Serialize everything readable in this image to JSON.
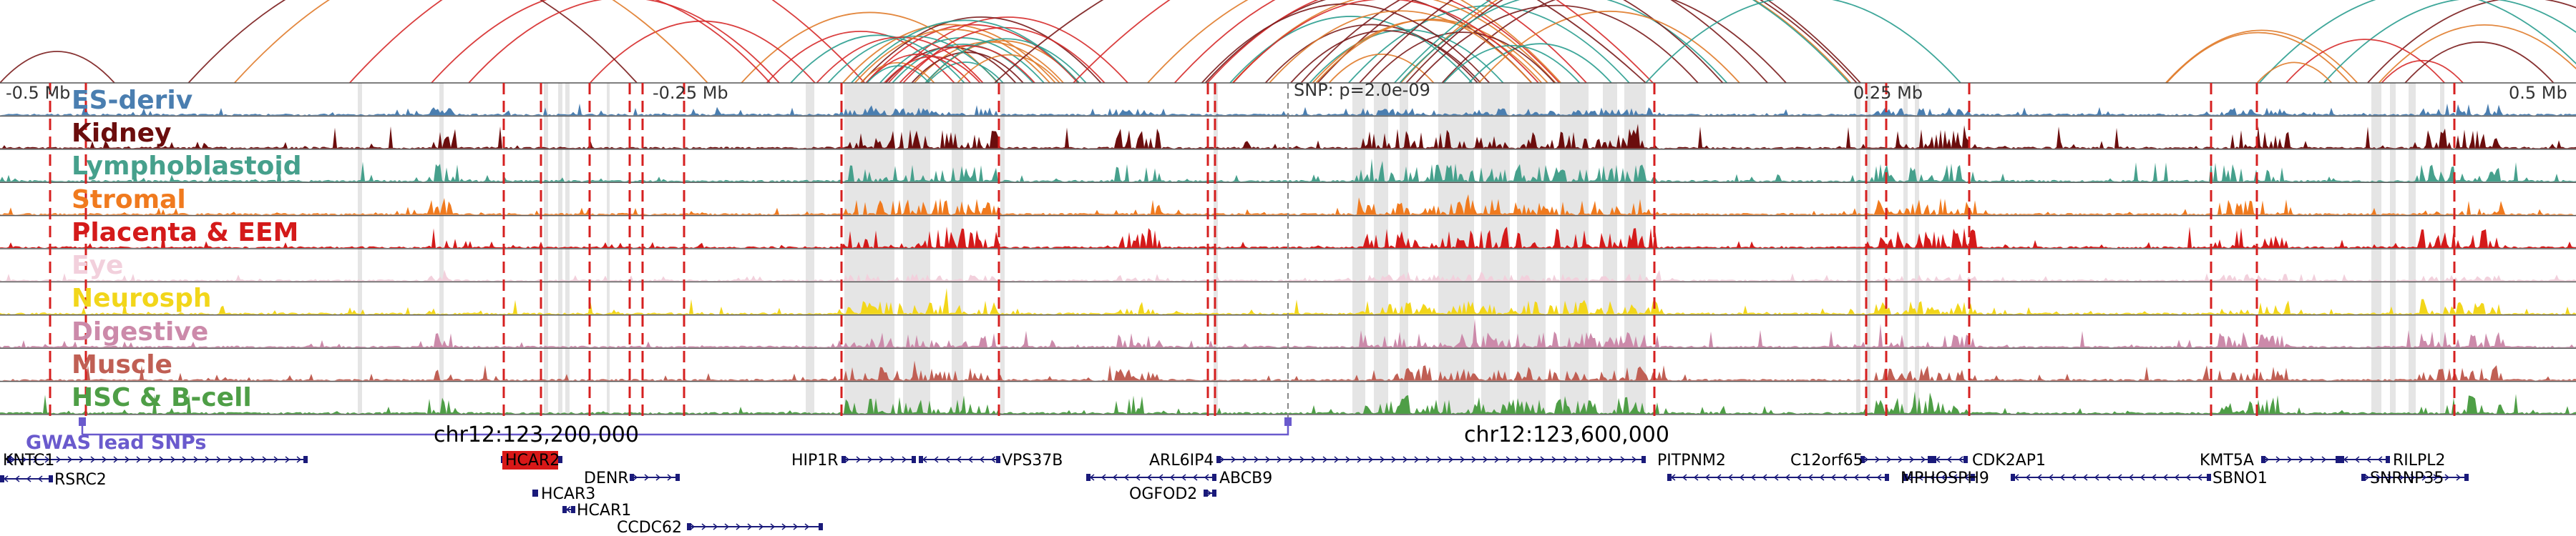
{
  "axis": {
    "ticks": [
      "-0.5 Mb",
      "-0.25 Mb",
      "SNP: p=2.0e-09",
      "0.25 Mb",
      "0.5 Mb"
    ],
    "coordinates": [
      "chr12:123,200,000",
      "chr12:123,600,000"
    ]
  },
  "tracks": [
    {
      "name": "ES-deriv",
      "color": "#4a7eb0",
      "level": 0.3
    },
    {
      "name": "Kidney",
      "color": "#6b0d0d",
      "level": 0.9
    },
    {
      "name": "Lymphoblastoid",
      "color": "#46a08c",
      "level": 0.8
    },
    {
      "name": "Stromal",
      "color": "#f07a1e",
      "level": 0.7
    },
    {
      "name": "Placenta & EEM",
      "color": "#d41a1a",
      "level": 0.9
    },
    {
      "name": "Eye",
      "color": "#f2d0dc",
      "level": 0.3
    },
    {
      "name": "Neurosph",
      "color": "#f2d61a",
      "level": 0.6
    },
    {
      "name": "Digestive",
      "color": "#cc8aaa",
      "level": 0.7
    },
    {
      "name": "Muscle",
      "color": "#c05f54",
      "level": 0.6
    },
    {
      "name": "HSC & B-cell",
      "color": "#4e9e46",
      "level": 0.8
    }
  ],
  "gwas": {
    "label": "GWAS lead SNPs",
    "color": "#6a5acd"
  },
  "genes": [
    {
      "name": "KNTC1",
      "strand": "+",
      "highlight": false
    },
    {
      "name": "RSRC2",
      "strand": "-",
      "highlight": false
    },
    {
      "name": "HCAR2",
      "strand": "-",
      "highlight": true
    },
    {
      "name": "HCAR3",
      "strand": "-",
      "highlight": false
    },
    {
      "name": "HCAR1",
      "strand": "-",
      "highlight": false
    },
    {
      "name": "DENR",
      "strand": "+",
      "highlight": false
    },
    {
      "name": "CCDC62",
      "strand": "+",
      "highlight": false
    },
    {
      "name": "HIP1R",
      "strand": "+",
      "highlight": false
    },
    {
      "name": "VPS37B",
      "strand": "-",
      "highlight": false
    },
    {
      "name": "ARL6IP4",
      "strand": "+",
      "highlight": false
    },
    {
      "name": "ABCB9",
      "strand": "-",
      "highlight": false
    },
    {
      "name": "OGFOD2",
      "strand": "+",
      "highlight": false
    },
    {
      "name": "PITPNM2",
      "strand": "-",
      "highlight": false
    },
    {
      "name": "C12orf65",
      "strand": "+",
      "highlight": false
    },
    {
      "name": "CDK2AP1",
      "strand": "-",
      "highlight": false
    },
    {
      "name": "MPHOSPH9",
      "strand": "-",
      "highlight": false
    },
    {
      "name": "KMT5A",
      "strand": "+",
      "highlight": false
    },
    {
      "name": "SBNO1",
      "strand": "-",
      "highlight": false
    },
    {
      "name": "RILPL2",
      "strand": "-",
      "highlight": false
    },
    {
      "name": "SNRNP35",
      "strand": "+",
      "highlight": false
    }
  ],
  "arc_colors": [
    "#2a9d8f",
    "#e07b2a",
    "#7a1c1c",
    "#d62a2a",
    "#2a9d8f",
    "#7a1c1c",
    "#e07b2a"
  ]
}
